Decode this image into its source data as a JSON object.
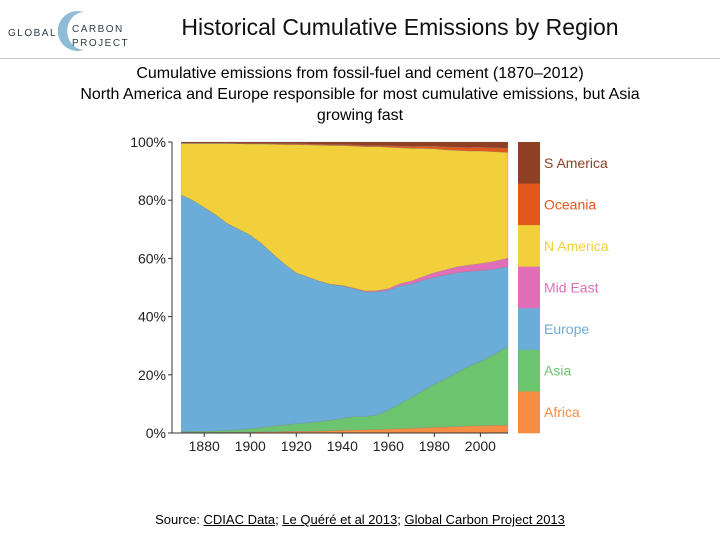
{
  "logo": {
    "word1": "GLOBAL",
    "word2": "CARBON",
    "word3": "PROJECT"
  },
  "header": {
    "title": "Historical Cumulative Emissions by Region"
  },
  "subtitle": {
    "line1": "Cumulative emissions from fossil-fuel and cement (1870–2012)",
    "line2": "North America and Europe responsible for most cumulative emissions, but Asia",
    "line3": "growing fast"
  },
  "footer": {
    "prefix": "Source: ",
    "link1": "CDIAC Data",
    "sep1": "; ",
    "link2": "Le Quéré et al 2013",
    "sep2": "; ",
    "link3": "Global Carbon Project 2013"
  },
  "chart_data": {
    "type": "area",
    "stacked": true,
    "percent": true,
    "x": [
      1870,
      1875,
      1880,
      1885,
      1890,
      1895,
      1900,
      1905,
      1910,
      1915,
      1920,
      1925,
      1930,
      1935,
      1940,
      1945,
      1950,
      1955,
      1960,
      1965,
      1970,
      1975,
      1980,
      1985,
      1990,
      1995,
      2000,
      2005,
      2012
    ],
    "xlim": [
      1866,
      2012
    ],
    "ylim": [
      0,
      100
    ],
    "x_ticks": [
      1880,
      1900,
      1920,
      1940,
      1960,
      1980,
      2000
    ],
    "y_ticks": [
      0,
      20,
      40,
      60,
      80,
      100
    ],
    "y_tick_labels": [
      "0%",
      "20%",
      "40%",
      "60%",
      "80%",
      "100%"
    ],
    "grid": false,
    "legend_position": "right",
    "series": [
      {
        "name": "Africa",
        "color": "#f58d43",
        "values": [
          0.2,
          0.2,
          0.2,
          0.2,
          0.3,
          0.3,
          0.3,
          0.4,
          0.4,
          0.5,
          0.6,
          0.6,
          0.7,
          0.8,
          0.9,
          1.0,
          1.1,
          1.2,
          1.3,
          1.5,
          1.6,
          1.8,
          2.0,
          2.1,
          2.2,
          2.4,
          2.5,
          2.6,
          2.7
        ]
      },
      {
        "name": "Asia",
        "color": "#6cc46e",
        "values": [
          0.3,
          0.3,
          0.4,
          0.5,
          0.6,
          0.8,
          1.2,
          1.5,
          2.0,
          2.3,
          2.6,
          2.9,
          3.2,
          3.6,
          4.1,
          4.6,
          4.5,
          5.0,
          6.5,
          8.5,
          10.6,
          12.7,
          14.8,
          16.6,
          18.6,
          20.5,
          22.0,
          24.0,
          27.0
        ]
      },
      {
        "name": "Europe",
        "color": "#6aadd8",
        "values": [
          81.3,
          79.5,
          76.9,
          74.3,
          71.1,
          68.9,
          66.5,
          63.1,
          59.0,
          55.2,
          51.8,
          50.1,
          48.3,
          46.6,
          45.5,
          44.0,
          42.9,
          42.3,
          41.2,
          40.5,
          39.0,
          37.9,
          36.7,
          35.6,
          34.3,
          32.6,
          31.3,
          29.6,
          27.4
        ]
      },
      {
        "name": "Mid East",
        "color": "#e06fb8",
        "values": [
          0.0,
          0.0,
          0.0,
          0.0,
          0.0,
          0.0,
          0.0,
          0.0,
          0.0,
          0.0,
          0.0,
          0.0,
          0.0,
          0.1,
          0.2,
          0.2,
          0.3,
          0.4,
          0.6,
          0.8,
          1.0,
          1.3,
          1.6,
          1.8,
          2.0,
          2.2,
          2.4,
          2.6,
          3.0
        ]
      },
      {
        "name": "N America",
        "color": "#f2d03c",
        "values": [
          17.7,
          19.5,
          22.0,
          24.5,
          27.5,
          29.4,
          31.3,
          34.3,
          37.8,
          41.1,
          44.1,
          45.4,
          46.7,
          47.7,
          48.1,
          48.8,
          49.6,
          49.5,
          48.6,
          46.7,
          45.6,
          44.1,
          42.6,
          41.2,
          40.0,
          39.2,
          38.7,
          37.9,
          36.3
        ]
      },
      {
        "name": "Oceania",
        "color": "#e2581c",
        "values": [
          0.1,
          0.1,
          0.1,
          0.1,
          0.1,
          0.1,
          0.2,
          0.2,
          0.2,
          0.3,
          0.3,
          0.3,
          0.3,
          0.3,
          0.3,
          0.4,
          0.4,
          0.4,
          0.5,
          0.6,
          0.7,
          0.8,
          0.9,
          1.0,
          1.1,
          1.2,
          1.3,
          1.3,
          1.5
        ]
      },
      {
        "name": "S America",
        "color": "#8e3f24",
        "values": [
          0.4,
          0.4,
          0.4,
          0.4,
          0.4,
          0.5,
          0.5,
          0.5,
          0.6,
          0.6,
          0.6,
          0.7,
          0.8,
          0.9,
          0.9,
          1.0,
          1.2,
          1.2,
          1.3,
          1.4,
          1.5,
          1.4,
          1.4,
          1.7,
          1.8,
          1.9,
          1.8,
          2.0,
          2.1
        ]
      }
    ]
  }
}
